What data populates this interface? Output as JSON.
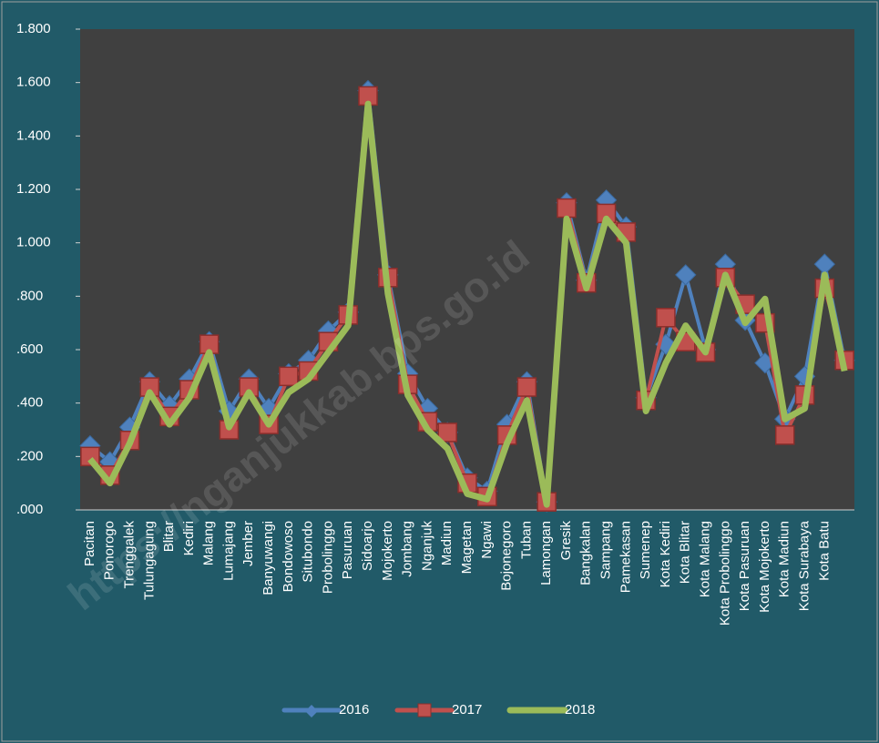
{
  "chart_data": {
    "type": "line",
    "watermark": "https://nganjukkab.bps.go.id",
    "categories": [
      "Pacitan",
      "Ponorogo",
      "Trenggalek",
      "Tulungagung",
      "Blitar",
      "Kediri",
      "Malang",
      "Lumajang",
      "Jember",
      "Banyuwangi",
      "Bondowoso",
      "Situbondo",
      "Probolinggo",
      "Pasuruan",
      "Sidoarjo",
      "Mojokerto",
      "Jombang",
      "Nganjuk",
      "Madiun",
      "Magetan",
      "Ngawi",
      "Bojonegoro",
      "Tuban",
      "Lamongan",
      "Gresik",
      "Bangkalan",
      "Sampang",
      "Pamekasan",
      "Sumenep",
      "Kota Kediri",
      "Kota Blitar",
      "Kota Malang",
      "Kota Probolinggo",
      "Kota Pasuruan",
      "Kota Mojokerto",
      "Kota Madiun",
      "Kota Surabaya",
      "Kota Batu",
      null
    ],
    "series": [
      {
        "name": "2016",
        "color": "#4f81bd",
        "marker": "diamond",
        "values": [
          0.24,
          0.18,
          0.31,
          0.48,
          0.39,
          0.49,
          0.63,
          0.37,
          0.49,
          0.38,
          0.51,
          0.56,
          0.67,
          0.74,
          1.57,
          0.88,
          0.51,
          0.38,
          0.29,
          0.12,
          0.07,
          0.32,
          0.48,
          0.03,
          1.15,
          0.86,
          1.16,
          1.06,
          0.42,
          0.62,
          0.88,
          0.6,
          0.92,
          0.71,
          0.55,
          0.34,
          0.5,
          0.92,
          0.56
        ]
      },
      {
        "name": "2017",
        "color": "#c0504d",
        "marker": "square",
        "values": [
          0.2,
          0.13,
          0.26,
          0.46,
          0.35,
          0.45,
          0.62,
          0.3,
          0.46,
          0.32,
          0.5,
          0.52,
          0.63,
          0.73,
          1.55,
          0.87,
          0.47,
          0.33,
          0.29,
          0.1,
          0.05,
          0.28,
          0.46,
          0.03,
          1.13,
          0.85,
          1.11,
          1.04,
          0.41,
          0.72,
          0.63,
          0.59,
          0.87,
          0.77,
          0.7,
          0.28,
          0.43,
          0.83,
          0.56
        ]
      },
      {
        "name": "2018",
        "color": "#9bbb59",
        "marker": "none",
        "values": [
          0.19,
          0.1,
          0.25,
          0.44,
          0.32,
          0.42,
          0.59,
          0.31,
          0.44,
          0.32,
          0.44,
          0.49,
          0.59,
          0.69,
          1.52,
          0.81,
          0.43,
          0.3,
          0.23,
          0.06,
          0.04,
          0.25,
          0.41,
          0.02,
          1.09,
          0.83,
          1.09,
          1.0,
          0.37,
          0.55,
          0.69,
          0.59,
          0.88,
          0.7,
          0.79,
          0.34,
          0.38,
          0.88,
          0.52
        ]
      }
    ],
    "ylim": [
      0,
      1.8
    ],
    "yticks": [
      {
        "value": 0,
        "label": ".000"
      },
      {
        "value": 0.2,
        "label": ".200"
      },
      {
        "value": 0.4,
        "label": ".400"
      },
      {
        "value": 0.6,
        "label": ".600"
      },
      {
        "value": 0.8,
        "label": ".800"
      },
      {
        "value": 1,
        "label": "1.000"
      },
      {
        "value": 1.2,
        "label": "1.200"
      },
      {
        "value": 1.4,
        "label": "1.400"
      },
      {
        "value": 1.6,
        "label": "1.600"
      },
      {
        "value": 1.8,
        "label": "1.800"
      }
    ],
    "plot_background": "#404040",
    "legend": "bottom"
  }
}
